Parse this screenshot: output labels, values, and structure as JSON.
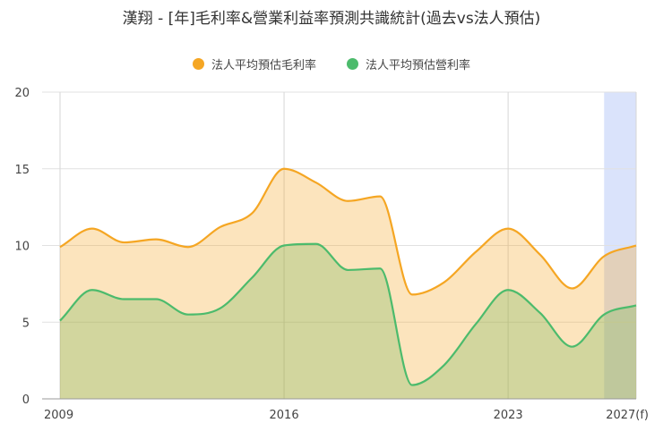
{
  "chart_data": {
    "type": "area",
    "title": "漢翔 - [年]毛利率&營業利益率預測共識統計(過去vs法人預估)",
    "x": [
      2009,
      2010,
      2011,
      2012,
      2013,
      2014,
      2015,
      2016,
      2017,
      2018,
      2019,
      2020,
      2021,
      2022,
      2023,
      2024,
      2025,
      2026,
      2027
    ],
    "series": [
      {
        "name": "法人平均預估毛利率",
        "color": "#f5a623",
        "values": [
          9.9,
          11.1,
          10.2,
          10.4,
          9.9,
          11.2,
          12.1,
          15.0,
          14.1,
          12.9,
          13.2,
          6.8,
          7.6,
          9.6,
          11.1,
          9.4,
          7.2,
          9.3,
          10.0
        ]
      },
      {
        "name": "法人平均預估營利率",
        "color": "#4cbb6c",
        "values": [
          5.1,
          7.1,
          6.5,
          6.5,
          5.5,
          5.9,
          7.9,
          10.0,
          10.1,
          8.4,
          8.5,
          0.9,
          2.2,
          4.9,
          7.1,
          5.6,
          3.4,
          5.5,
          6.1
        ]
      }
    ],
    "x_tick_labels": [
      {
        "x": 2009,
        "label": "2009"
      },
      {
        "x": 2016,
        "label": "2016"
      },
      {
        "x": 2023,
        "label": "2023"
      },
      {
        "x": 2027,
        "label": "2027(f)"
      }
    ],
    "y_ticks": [
      0,
      5,
      10,
      15,
      20
    ],
    "ylim": [
      0,
      20
    ],
    "xlim": [
      2009,
      2027
    ],
    "forecast_range": [
      2026,
      2027
    ],
    "forecast_color": "#dae3fb",
    "grid": true,
    "legend_position": "top-center"
  }
}
